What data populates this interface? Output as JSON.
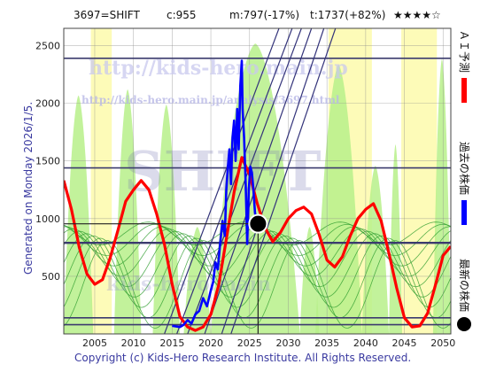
{
  "header": {
    "ticker": "3697=SHIFT",
    "current": "c:955",
    "mid": "m:797(-17%)",
    "target": "t:1737(+82%)",
    "stars": "★★★★☆"
  },
  "side_note": "Generated on Monday 2026/1/5.",
  "legend": {
    "ai": "ＡＩ予測",
    "past": "過去の株価",
    "latest": "最新の株価"
  },
  "watermark": {
    "line1": "http://kids-hero.main.jp",
    "line2": "http://kids-hero.main.jp/analysis/3697.html",
    "big": "SHIFT",
    "low": "kids-hero.main"
  },
  "copyright": "Copyright (c) Kids-Hero Research Institute. All Rights Reserved.",
  "colors": {
    "ai": "#ff0000",
    "past": "#0000ff",
    "latest": "#000000",
    "band_green": "#b7f08a",
    "band_yellow": "#fdfbb8",
    "hline": "#3b3b6e"
  },
  "chart_data": {
    "type": "line",
    "xlim": [
      2001,
      2051
    ],
    "ylim": [
      0,
      2650
    ],
    "x_ticks": [
      "2005",
      "2010",
      "2015",
      "2020",
      "2025",
      "2030",
      "2035",
      "2040",
      "2045",
      "2050"
    ],
    "y_ticks": [
      "500",
      "1000",
      "1500",
      "2000",
      "2500"
    ],
    "grid": true,
    "horizontal_levels": [
      80,
      140,
      790,
      1440,
      2390
    ],
    "latest_point": {
      "x": 2026.1,
      "y": 955
    },
    "series": [
      {
        "name": "ＡＩ予測",
        "x": [
          2001.0,
          2002.0,
          2003.0,
          2004.0,
          2005.0,
          2006.0,
          2007.0,
          2008.0,
          2009.0,
          2010.0,
          2011.0,
          2012.0,
          2013.0,
          2014.0,
          2015.0,
          2016.0,
          2017.0,
          2018.0,
          2019.0,
          2020.0,
          2021.0,
          2022.0,
          2023.0,
          2024.0,
          2025.0,
          2026.0,
          2027.0,
          2028.0,
          2029.0,
          2030.0,
          2031.0,
          2032.0,
          2033.0,
          2034.0,
          2035.0,
          2036.0,
          2037.0,
          2038.0,
          2039.0,
          2040.0,
          2041.0,
          2042.0,
          2043.0,
          2044.0,
          2045.0,
          2046.0,
          2047.0,
          2048.0,
          2049.0,
          2050.0,
          2051.0
        ],
        "values": [
          1330,
          1080,
          750,
          520,
          430,
          470,
          660,
          900,
          1150,
          1250,
          1330,
          1250,
          1040,
          780,
          430,
          150,
          60,
          30,
          60,
          170,
          420,
          820,
          1230,
          1530,
          1380,
          1130,
          920,
          800,
          880,
          1000,
          1070,
          1100,
          1040,
          860,
          640,
          580,
          670,
          850,
          1000,
          1080,
          1130,
          980,
          700,
          400,
          140,
          60,
          70,
          180,
          420,
          680,
          760
        ]
      },
      {
        "name": "過去の株価",
        "x": [
          2015.0,
          2016.0,
          2016.5,
          2017.0,
          2017.5,
          2018.0,
          2018.5,
          2019.0,
          2019.5,
          2020.0,
          2020.3,
          2020.6,
          2020.9,
          2021.2,
          2021.5,
          2021.8,
          2022.0,
          2022.2,
          2022.4,
          2022.6,
          2022.8,
          2023.0,
          2023.2,
          2023.4,
          2023.6,
          2023.8,
          2024.0,
          2024.1,
          2024.3,
          2024.5,
          2024.7,
          2024.9,
          2025.1,
          2025.3,
          2025.5,
          2025.7,
          2025.9,
          2026.1
        ],
        "values": [
          70,
          60,
          80,
          120,
          90,
          170,
          200,
          310,
          240,
          380,
          450,
          620,
          560,
          780,
          980,
          850,
          1250,
          1450,
          1600,
          1300,
          1700,
          1850,
          1500,
          1950,
          1600,
          2150,
          2370,
          1950,
          1700,
          1300,
          780,
          1250,
          1450,
          1400,
          1250,
          1050,
          980,
          955
        ]
      }
    ]
  }
}
